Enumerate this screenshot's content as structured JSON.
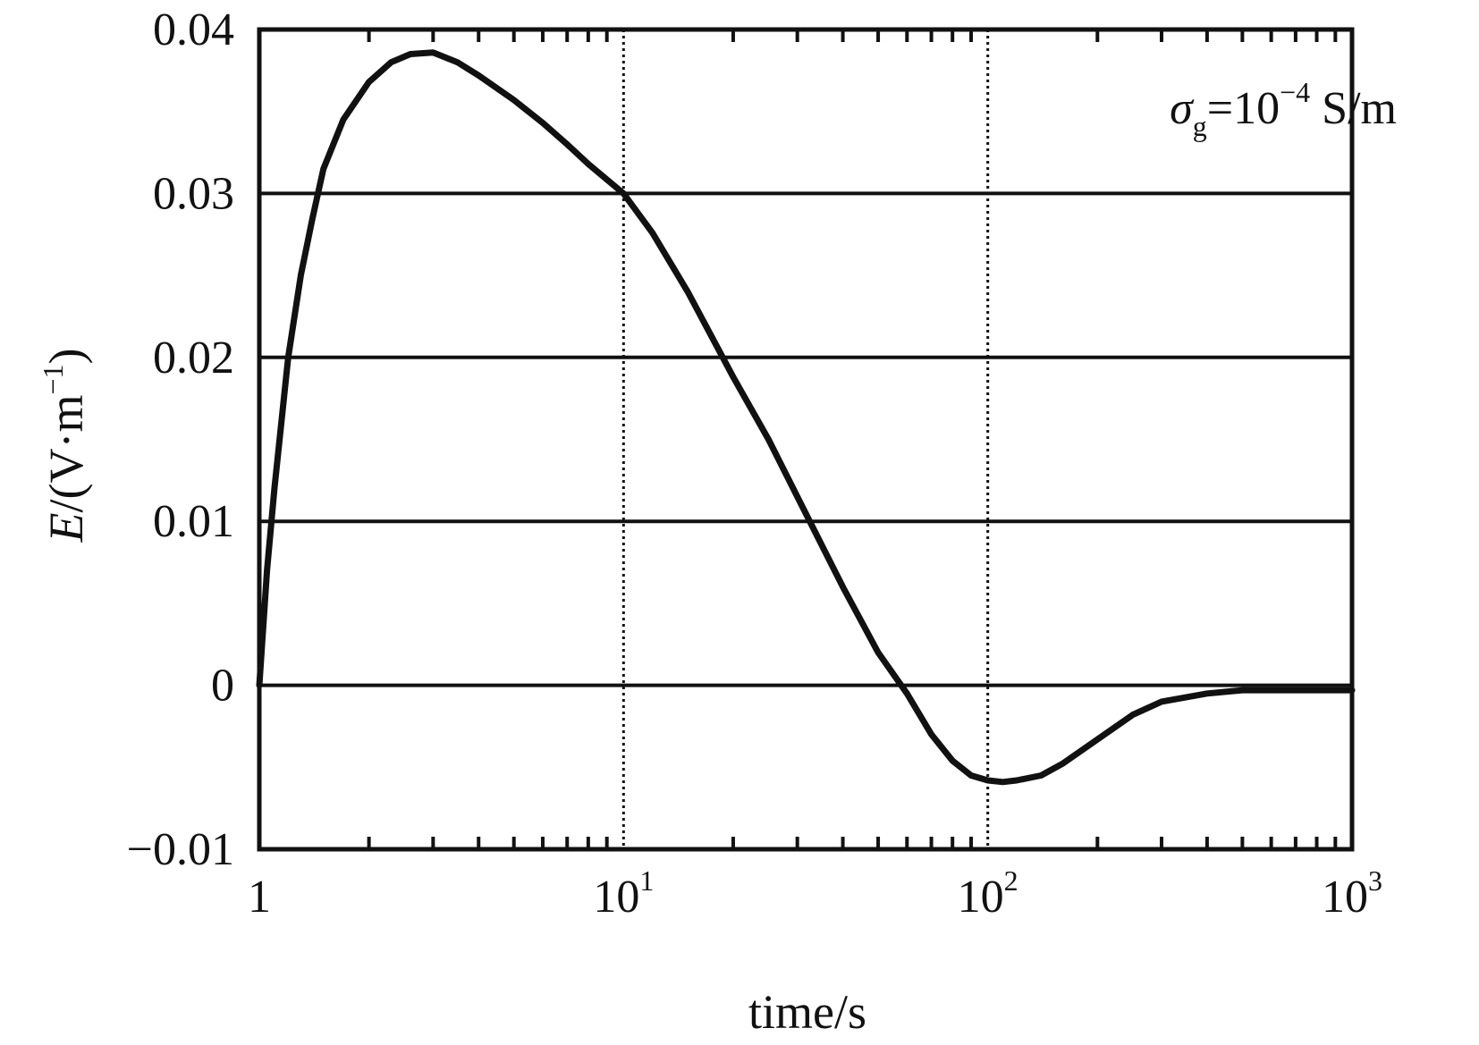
{
  "chart_data": {
    "type": "line",
    "title": "",
    "xlabel": "time/s",
    "ylabel": {
      "italic": "E",
      "rest": "/(V·m",
      "sup": "−1",
      "close": ")"
    },
    "annotation": {
      "symbol": "σ",
      "sub": "g",
      "base": "=10",
      "sup": "−4",
      "unit": " S/m"
    },
    "xscale": "log",
    "xlim": [
      1,
      1000
    ],
    "ylim": [
      -0.01,
      0.04
    ],
    "grid": true,
    "xticks": [
      {
        "value": 1,
        "base": "1",
        "sup": ""
      },
      {
        "value": 10,
        "base": "10",
        "sup": "1"
      },
      {
        "value": 100,
        "base": "10",
        "sup": "2"
      },
      {
        "value": 1000,
        "base": "10",
        "sup": "3"
      }
    ],
    "yticks": [
      {
        "value": 0.04,
        "label": "0.04"
      },
      {
        "value": 0.03,
        "label": "0.03"
      },
      {
        "value": 0.02,
        "label": "0.02"
      },
      {
        "value": 0.01,
        "label": "0.01"
      },
      {
        "value": 0,
        "label": "0"
      },
      {
        "value": -0.01,
        "label": "−0.01"
      }
    ],
    "series": [
      {
        "x": [
          1,
          1.05,
          1.1,
          1.2,
          1.3,
          1.4,
          1.5,
          1.7,
          2.0,
          2.3,
          2.6,
          3.0,
          3.5,
          4.0,
          5.0,
          6.0,
          7.0,
          8.0,
          10,
          12,
          15,
          20,
          25,
          30,
          40,
          50,
          60,
          70,
          80,
          90,
          100,
          110,
          120,
          140,
          160,
          200,
          250,
          300,
          400,
          500,
          700,
          1000
        ],
        "y": [
          0,
          0.007,
          0.012,
          0.02,
          0.025,
          0.0285,
          0.0315,
          0.0345,
          0.0368,
          0.038,
          0.0385,
          0.0386,
          0.038,
          0.0372,
          0.0357,
          0.0343,
          0.033,
          0.0318,
          0.03,
          0.0276,
          0.024,
          0.0188,
          0.015,
          0.0115,
          0.006,
          0.002,
          -0.0005,
          -0.003,
          -0.0046,
          -0.0055,
          -0.0058,
          -0.0059,
          -0.0058,
          -0.0055,
          -0.0048,
          -0.0033,
          -0.0018,
          -0.001,
          -0.0005,
          -0.0003,
          -0.0003,
          -0.0003
        ]
      }
    ]
  }
}
